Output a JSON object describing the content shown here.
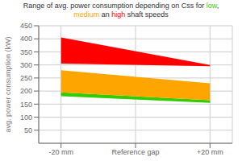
{
  "chart_data": {
    "type": "area_range",
    "title": [
      [
        {
          "text": "Range of avg. power consumption depending on Css for ",
          "color": "#333333"
        },
        {
          "text": "low",
          "color": "#33cc00"
        },
        {
          "text": ",",
          "color": "#333333"
        }
      ],
      [
        {
          "text": "medium",
          "color": "#FFA500"
        },
        {
          "text": " an ",
          "color": "#333333"
        },
        {
          "text": "high",
          "color": "#ff0000"
        },
        {
          "text": " shaft speeds",
          "color": "#333333"
        }
      ]
    ],
    "ylabel": "avg. power consumption (kW)",
    "x": [
      0,
      2
    ],
    "xlim": [
      -0.3,
      2.3
    ],
    "xticks": [
      {
        "value": 0,
        "label": "-20 mm"
      },
      {
        "value": 1,
        "label": "Reference gap"
      },
      {
        "value": 2,
        "label": "+20 mm"
      }
    ],
    "ylim": [
      0,
      450
    ],
    "yticks": [
      50,
      100,
      150,
      200,
      250,
      300,
      350,
      400,
      450
    ],
    "grid": true,
    "series": [
      {
        "color": "#33cc00",
        "lower": [
          180,
          155
        ],
        "upper": [
          195,
          165
        ]
      },
      {
        "color": "#FFA500",
        "lower": [
          195,
          165
        ],
        "upper": [
          280,
          230
        ]
      },
      {
        "color": "#ff0000",
        "lower": [
          305,
          295
        ],
        "upper": [
          405,
          300
        ]
      }
    ]
  }
}
